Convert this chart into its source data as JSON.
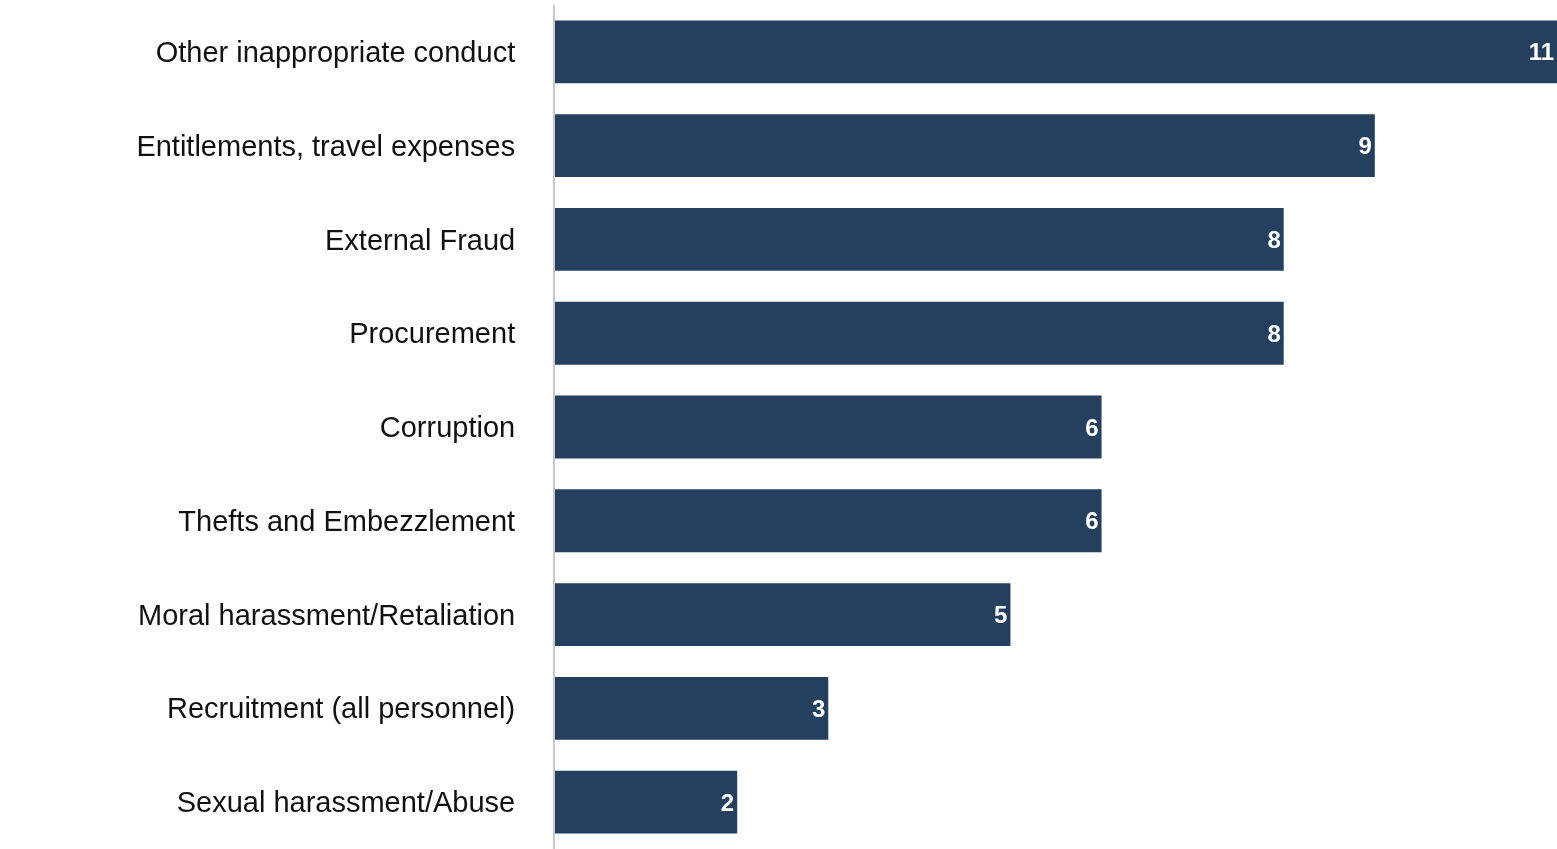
{
  "chart_data": {
    "type": "bar",
    "orientation": "horizontal",
    "categories": [
      "Other inappropriate conduct",
      "Entitlements, travel expenses",
      "External Fraud",
      "Procurement",
      "Corruption",
      "Thefts and Embezzlement",
      "Moral harassment/Retaliation",
      "Recruitment (all personnel)",
      "Sexual harassment/Abuse"
    ],
    "values": [
      11,
      9,
      8,
      8,
      6,
      6,
      5,
      3,
      2
    ],
    "color": "#253f5f",
    "data_labels": true
  }
}
